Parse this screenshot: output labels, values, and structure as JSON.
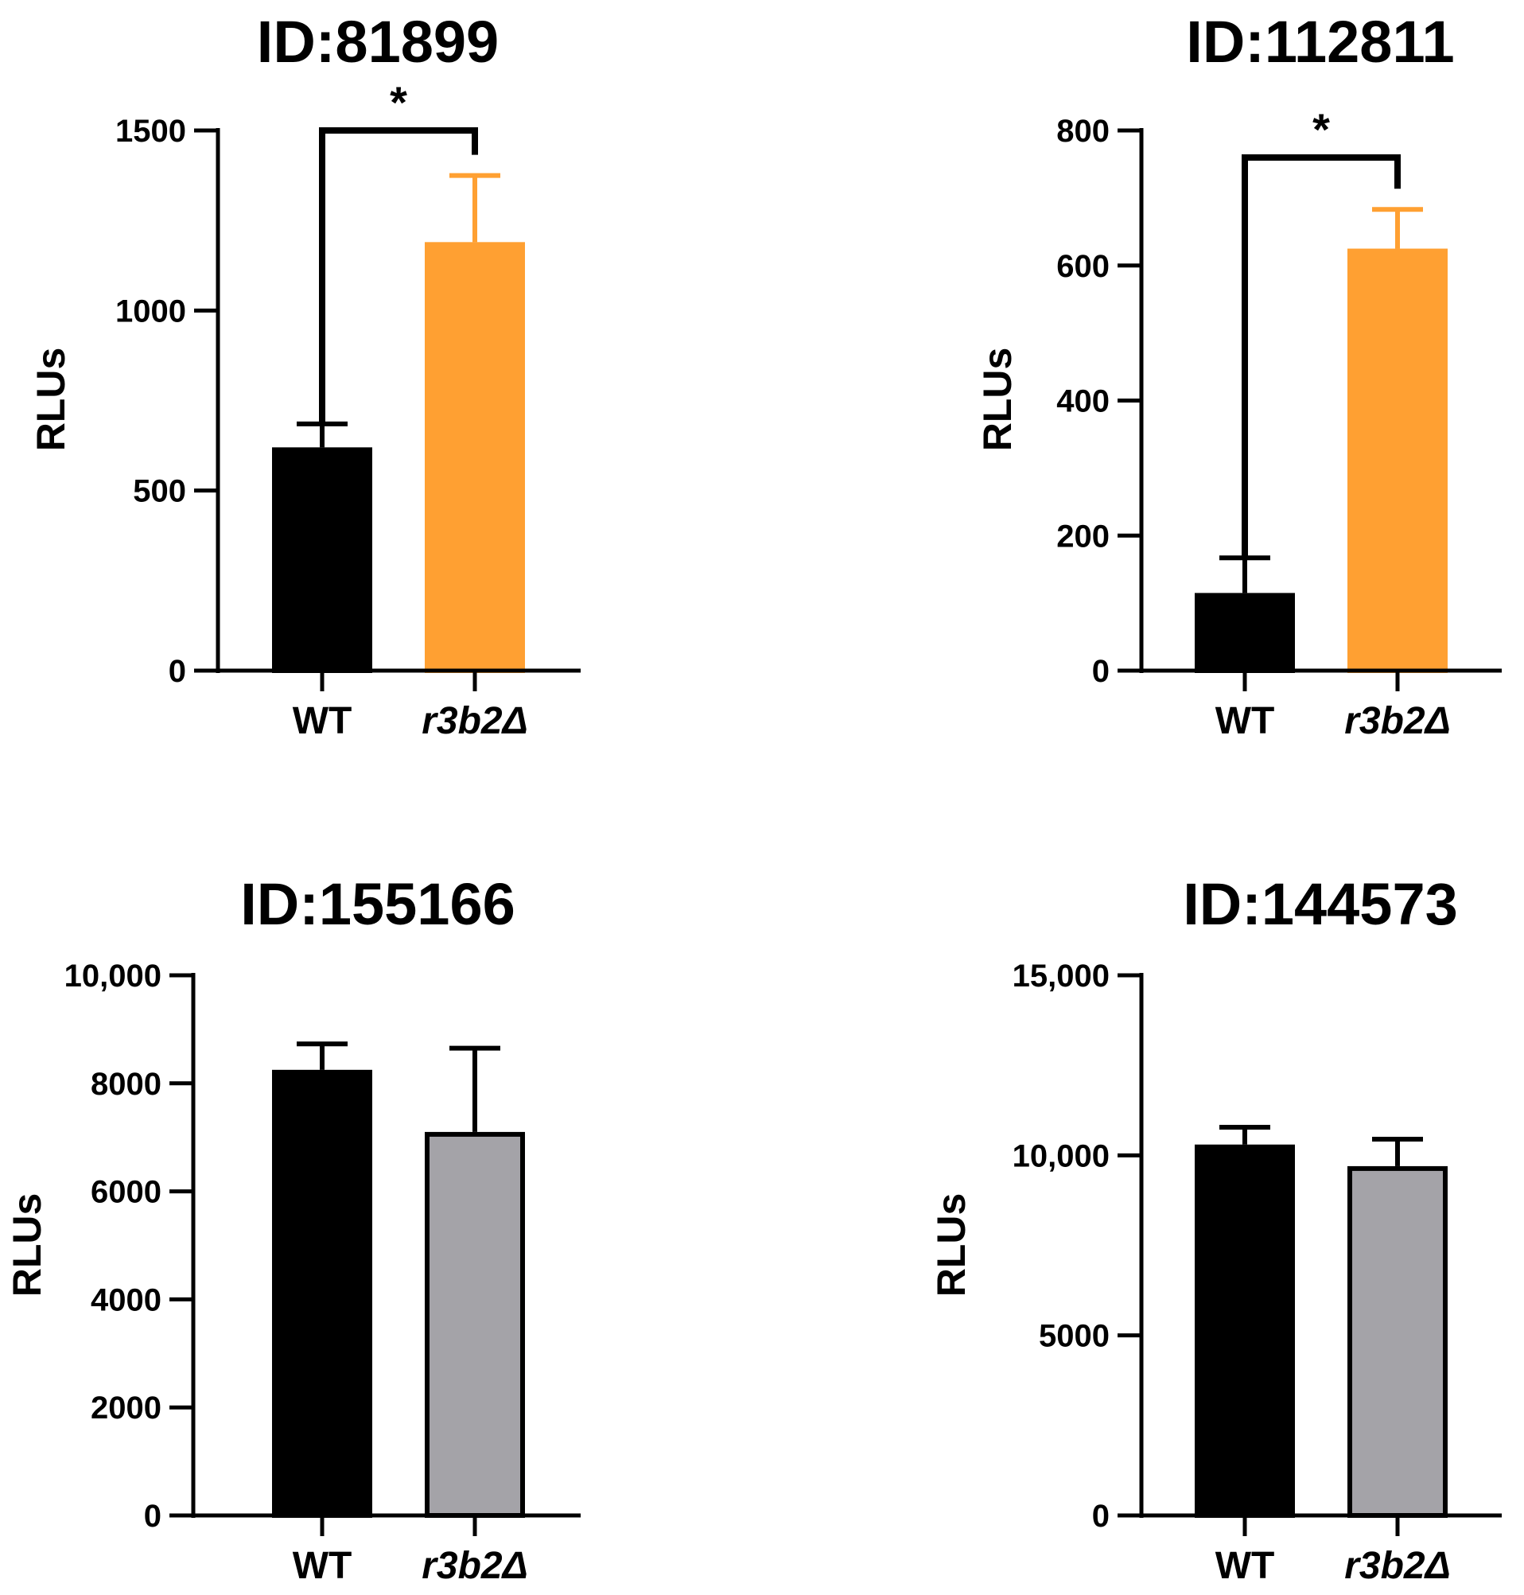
{
  "chart_data": [
    {
      "type": "bar",
      "title": "ID:81899",
      "ylabel": "RLUs",
      "xlabel": "",
      "categories": [
        "WT",
        "r3b2Δ"
      ],
      "values": [
        620,
        1190
      ],
      "error": [
        65,
        185
      ],
      "ylim": [
        0,
        1500
      ],
      "yticks": [
        0,
        500,
        1000,
        1500
      ],
      "ytick_labels": [
        "0",
        "500",
        "1000",
        "1500"
      ],
      "bar_fill": [
        "#000000",
        "#FFA032"
      ],
      "bar_stroke": [
        "#000000",
        "#FFA032"
      ],
      "error_color": [
        "#000000",
        "#FFA032"
      ],
      "significance": {
        "label": "*",
        "bracket_level": 1500
      }
    },
    {
      "type": "bar",
      "title": "ID:112811",
      "ylabel": "RLUs",
      "xlabel": "",
      "categories": [
        "WT",
        "r3b2Δ"
      ],
      "values": [
        115,
        625
      ],
      "error": [
        52,
        58
      ],
      "ylim": [
        0,
        800
      ],
      "yticks": [
        0,
        200,
        400,
        600,
        800
      ],
      "ytick_labels": [
        "0",
        "200",
        "400",
        "600",
        "800"
      ],
      "bar_fill": [
        "#000000",
        "#FFA032"
      ],
      "bar_stroke": [
        "#000000",
        "#FFA032"
      ],
      "error_color": [
        "#000000",
        "#FFA032"
      ],
      "significance": {
        "label": "*",
        "bracket_level": 760
      }
    },
    {
      "type": "bar",
      "title": "ID:155166",
      "ylabel": "RLUs",
      "xlabel": "",
      "categories": [
        "WT",
        "r3b2Δ"
      ],
      "values": [
        8250,
        7100
      ],
      "error": [
        480,
        1550
      ],
      "ylim": [
        0,
        10000
      ],
      "yticks": [
        0,
        2000,
        4000,
        6000,
        8000,
        10000
      ],
      "ytick_labels": [
        "0",
        "2000",
        "4000",
        "6000",
        "8000",
        "10,000"
      ],
      "bar_fill": [
        "#000000",
        "#A4A3A8"
      ],
      "bar_stroke": [
        "#000000",
        "#000000"
      ],
      "error_color": [
        "#000000",
        "#000000"
      ]
    },
    {
      "type": "bar",
      "title": "ID:144573",
      "ylabel": "RLUs",
      "xlabel": "",
      "categories": [
        "WT",
        "r3b2Δ"
      ],
      "values": [
        10300,
        9700
      ],
      "error": [
        480,
        750
      ],
      "ylim": [
        0,
        15000
      ],
      "yticks": [
        0,
        5000,
        10000,
        15000
      ],
      "ytick_labels": [
        "0",
        "5000",
        "10,000",
        "15,000"
      ],
      "bar_fill": [
        "#000000",
        "#A4A3A8"
      ],
      "bar_stroke": [
        "#000000",
        "#000000"
      ],
      "error_color": [
        "#000000",
        "#000000"
      ]
    }
  ]
}
